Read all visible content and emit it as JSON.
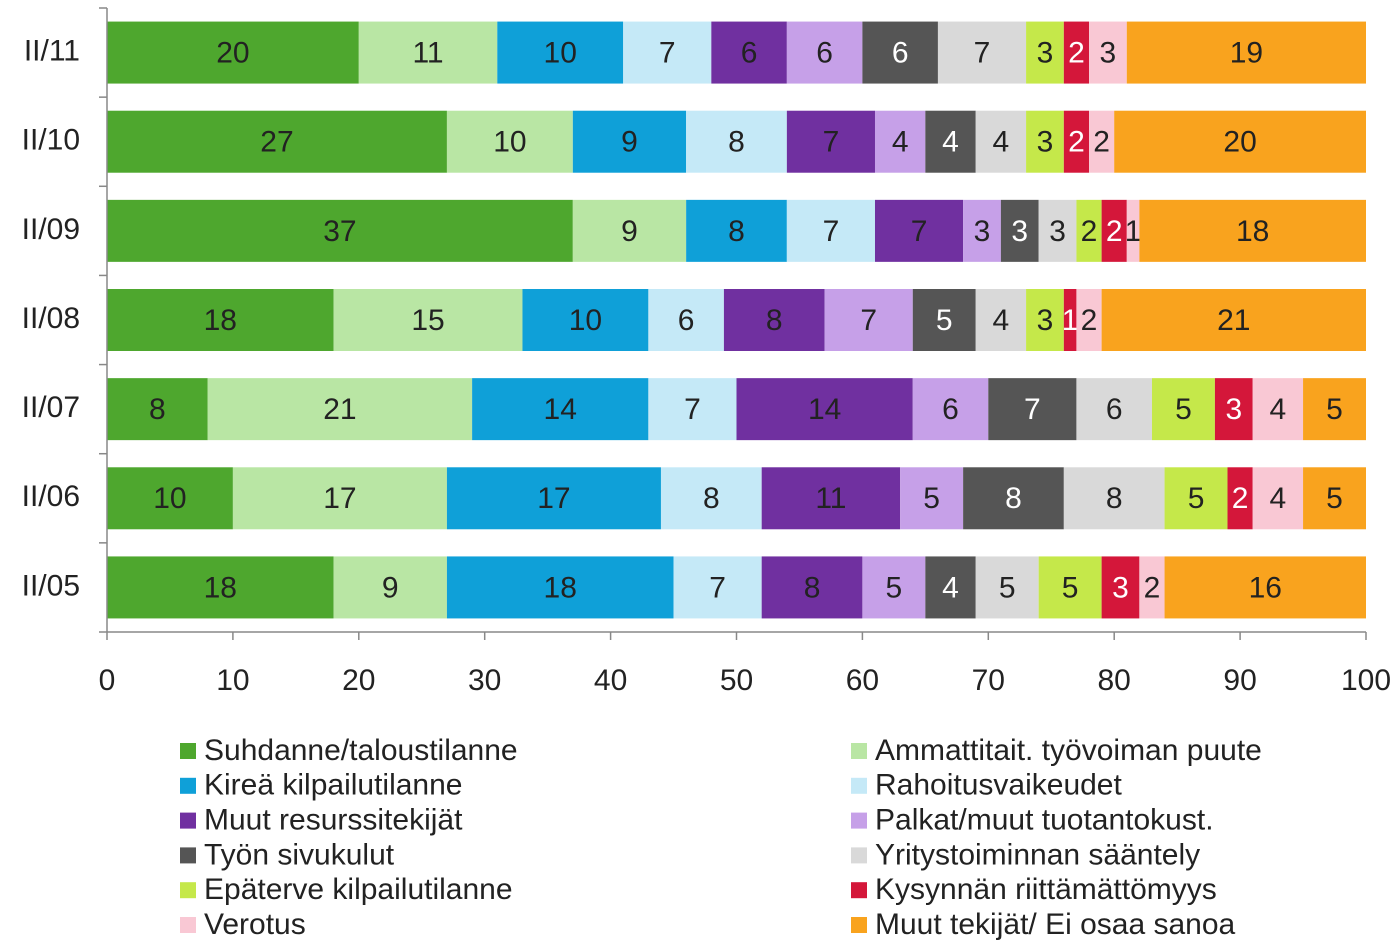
{
  "chart_data": {
    "type": "stacked_barh",
    "categories": [
      "II/11",
      "II/10",
      "II/09",
      "II/08",
      "II/07",
      "II/06",
      "II/05"
    ],
    "series": [
      {
        "name": "Suhdanne/taloustilanne",
        "color": "#4ea72e",
        "label_color": "#222",
        "values": [
          20,
          27,
          37,
          18,
          8,
          10,
          18
        ]
      },
      {
        "name": "Ammattitait. työvoiman puute",
        "color": "#b9e6a4",
        "label_color": "#222",
        "values": [
          11,
          10,
          9,
          15,
          21,
          17,
          9
        ]
      },
      {
        "name": "Kireä kilpailutilanne",
        "color": "#0fa0d8",
        "label_color": "#222",
        "values": [
          10,
          9,
          8,
          10,
          14,
          17,
          18
        ]
      },
      {
        "name": "Rahoitusvaikeudet",
        "color": "#c5e9f7",
        "label_color": "#222",
        "values": [
          7,
          8,
          7,
          6,
          7,
          8,
          7
        ]
      },
      {
        "name": "Muut resurssitekijät",
        "color": "#7030a0",
        "label_color": "#222",
        "values": [
          6,
          7,
          7,
          8,
          14,
          11,
          8
        ]
      },
      {
        "name": "Palkat/muut tuotantokust.",
        "color": "#c6a0e8",
        "label_color": "#222",
        "values": [
          6,
          4,
          3,
          7,
          6,
          5,
          5
        ]
      },
      {
        "name": "Työn sivukulut",
        "color": "#555555",
        "label_color": "#ffffff",
        "values": [
          6,
          4,
          3,
          5,
          7,
          8,
          4
        ]
      },
      {
        "name": "Yritystoiminnan sääntely",
        "color": "#d9d9d9",
        "label_color": "#222",
        "values": [
          7,
          4,
          3,
          4,
          6,
          8,
          5
        ]
      },
      {
        "name": "Epäterve kilpailutilanne",
        "color": "#c5e84a",
        "label_color": "#222",
        "values": [
          3,
          3,
          2,
          3,
          5,
          5,
          5
        ]
      },
      {
        "name": "Kysynnän riittämättömyys",
        "color": "#d4173a",
        "label_color": "#ffffff",
        "values": [
          2,
          2,
          2,
          1,
          3,
          2,
          3
        ]
      },
      {
        "name": "Verotus",
        "color": "#f9c8d4",
        "label_color": "#222",
        "values": [
          3,
          2,
          1,
          2,
          4,
          4,
          2
        ]
      },
      {
        "name": "Muut tekijät/ Ei osaa sanoa",
        "color": "#f9a31e",
        "label_color": "#222",
        "values": [
          19,
          20,
          18,
          21,
          5,
          5,
          16
        ]
      }
    ],
    "xlim": [
      0,
      100
    ],
    "xticks": [
      0,
      10,
      20,
      30,
      40,
      50,
      60,
      70,
      80,
      90,
      100
    ]
  }
}
